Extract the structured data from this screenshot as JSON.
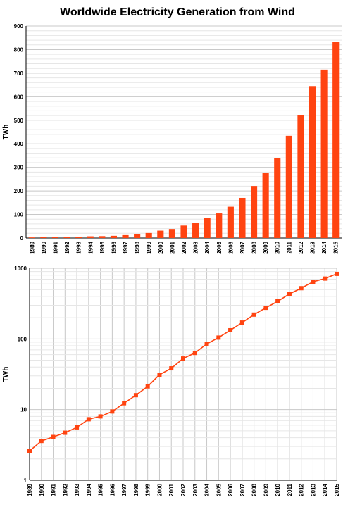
{
  "title": "Worldwide Electricity Generation from Wind",
  "colors": {
    "bar": "#ff4411",
    "line": "#ff4411",
    "grid_major": "#c8c8c8",
    "grid_minor": "#e6e6e6",
    "axis": "#000000"
  },
  "chart_data": [
    {
      "type": "bar",
      "ylabel": "TWh",
      "ylim": [
        0,
        900
      ],
      "yticks": [
        "0",
        "100",
        "200",
        "300",
        "400",
        "500",
        "600",
        "700",
        "800",
        "900"
      ],
      "grid": true,
      "categories": [
        "1989",
        "1990",
        "1991",
        "1992",
        "1993",
        "1994",
        "1995",
        "1996",
        "1997",
        "1998",
        "1999",
        "2000",
        "2001",
        "2002",
        "2003",
        "2004",
        "2005",
        "2006",
        "2007",
        "2008",
        "2009",
        "2010",
        "2011",
        "2012",
        "2013",
        "2014",
        "2015"
      ],
      "values": [
        2.6,
        3.6,
        4.1,
        4.7,
        5.6,
        7.3,
        8.0,
        9.4,
        12.3,
        16.0,
        21.3,
        31.2,
        38.4,
        52.9,
        63.4,
        85.1,
        104.5,
        132.8,
        170.5,
        220.9,
        275.9,
        340.0,
        434.0,
        523.0,
        645.0,
        715.0,
        834.0
      ]
    },
    {
      "type": "line",
      "ylabel": "TWh",
      "yscale": "log",
      "ylim": [
        1,
        1000
      ],
      "yticks": [
        "1",
        "10",
        "100",
        "1000"
      ],
      "grid": true,
      "categories": [
        "1989",
        "1990",
        "1991",
        "1992",
        "1993",
        "1994",
        "1995",
        "1996",
        "1997",
        "1998",
        "1999",
        "2000",
        "2001",
        "2002",
        "2003",
        "2004",
        "2005",
        "2006",
        "2007",
        "2008",
        "2009",
        "2010",
        "2011",
        "2012",
        "2013",
        "2014",
        "2015"
      ],
      "values": [
        2.6,
        3.6,
        4.1,
        4.7,
        5.6,
        7.3,
        8.0,
        9.4,
        12.3,
        16.0,
        21.3,
        31.2,
        38.4,
        52.9,
        63.4,
        85.1,
        104.5,
        132.8,
        170.5,
        220.9,
        275.9,
        340.0,
        434.0,
        523.0,
        645.0,
        715.0,
        834.0
      ]
    }
  ]
}
